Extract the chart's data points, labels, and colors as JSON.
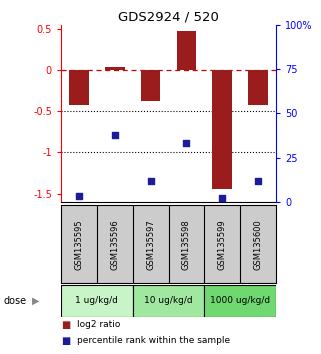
{
  "title": "GDS2924 / 520",
  "samples": [
    "GSM135595",
    "GSM135596",
    "GSM135597",
    "GSM135598",
    "GSM135599",
    "GSM135600"
  ],
  "log2_ratio": [
    -0.42,
    0.04,
    -0.38,
    0.48,
    -1.45,
    -0.42
  ],
  "percentile_rank": [
    3,
    38,
    12,
    33,
    2,
    12
  ],
  "dose_groups": [
    {
      "label": "1 ug/kg/d",
      "samples": [
        0,
        1
      ],
      "color": "#c8f5c8"
    },
    {
      "label": "10 ug/kg/d",
      "samples": [
        2,
        3
      ],
      "color": "#a0e8a0"
    },
    {
      "label": "1000 ug/kg/d",
      "samples": [
        4,
        5
      ],
      "color": "#70d870"
    }
  ],
  "ylim_left": [
    -1.6,
    0.55
  ],
  "ylim_right": [
    0,
    100
  ],
  "bar_color": "#9b1c1c",
  "dot_color": "#1c1c9b",
  "right_yticks": [
    0,
    25,
    50,
    75,
    100
  ],
  "right_ytick_labels": [
    "0",
    "25",
    "50",
    "75",
    "100%"
  ],
  "left_yticks": [
    -1.5,
    -1.0,
    -0.5,
    0.0,
    0.5
  ],
  "left_ytick_labels": [
    "-1.5",
    "-1",
    "-0.5",
    "0",
    "0.5"
  ],
  "legend_red_label": "log2 ratio",
  "legend_blue_label": "percentile rank within the sample",
  "dose_label": "dose",
  "bar_width": 0.55,
  "sample_bg_color": "#cccccc",
  "dose_border_color": "#000000"
}
